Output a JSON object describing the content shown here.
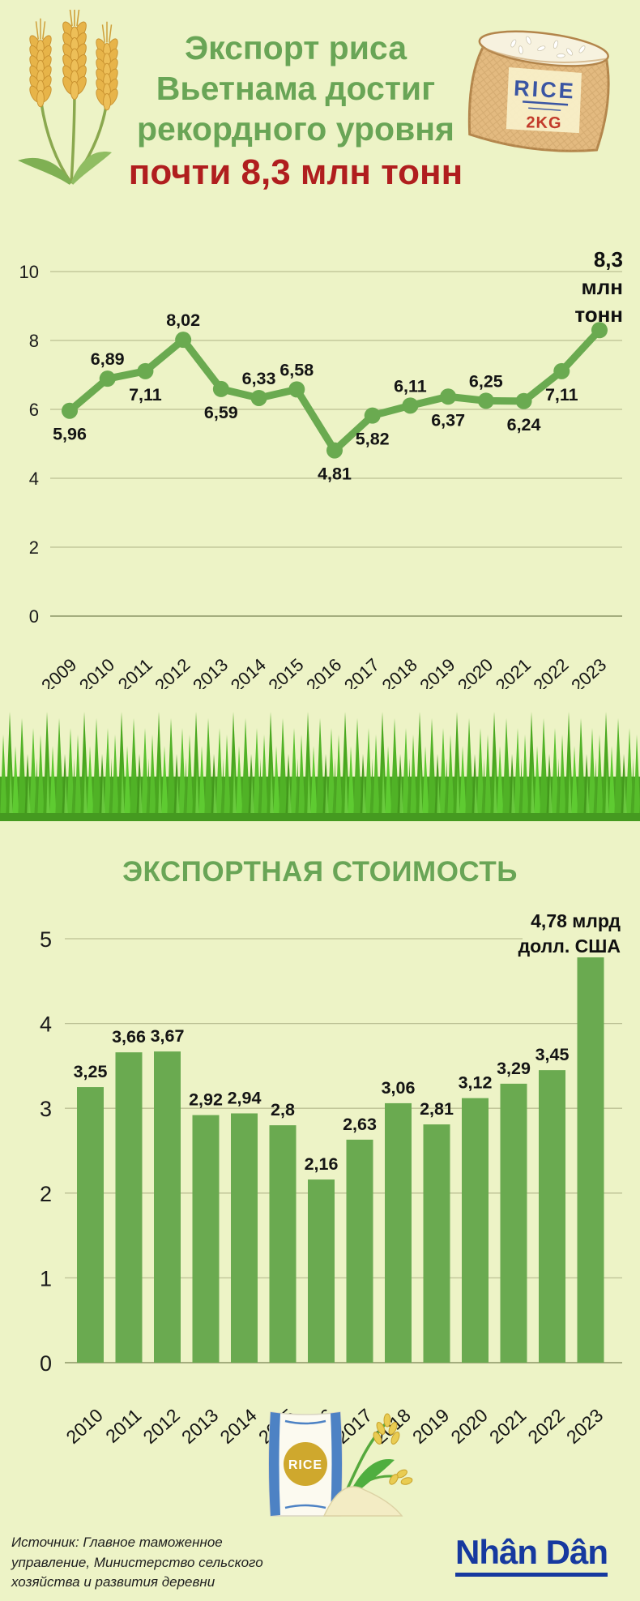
{
  "page": {
    "background": "#edf3c6",
    "accent_green": "#6aaa50",
    "title_green": "#69a556",
    "title_red": "#b01e1e",
    "logo_blue": "#16399f"
  },
  "header": {
    "title_lines": [
      "Экспорт риса",
      "Вьетнама достиг",
      "рекордного уровня"
    ],
    "subtitle": "почти 8,3 млн тонн",
    "sack_label": "RICE",
    "sack_weight": "2KG"
  },
  "chart_data": [
    {
      "type": "line",
      "x": [
        "2009",
        "2010",
        "2011",
        "2012",
        "2013",
        "2014",
        "2015",
        "2016",
        "2017",
        "2018",
        "2019",
        "2020",
        "2021",
        "2022",
        "2023"
      ],
      "values": [
        5.96,
        6.89,
        7.11,
        8.02,
        6.59,
        6.33,
        6.58,
        4.81,
        5.82,
        6.11,
        6.37,
        6.25,
        6.24,
        7.11,
        8.3
      ],
      "point_labels": [
        "5,96",
        "6,89",
        "7,11",
        "8,02",
        "6,59",
        "6,33",
        "6,58",
        "4,81",
        "5,82",
        "6,11",
        "6,37",
        "6,25",
        "6,24",
        "7,11",
        ""
      ],
      "label_side": [
        "below",
        "above",
        "below",
        "above",
        "below",
        "above",
        "above",
        "below",
        "below",
        "above",
        "below",
        "above",
        "below",
        "below",
        "none"
      ],
      "end_annotation": [
        "8,3",
        "млн",
        "тонн"
      ],
      "ylim": [
        0,
        10
      ],
      "yticks": [
        0,
        2,
        4,
        6,
        8,
        10
      ],
      "grid": true,
      "legend": "none",
      "line_color": "#6aaa50"
    },
    {
      "type": "bar",
      "title": "ЭКСПОРТНАЯ СТОИМОСТЬ",
      "categories": [
        "2010",
        "2011",
        "2012",
        "2013",
        "2014",
        "2015",
        "2016",
        "2017",
        "2018",
        "2019",
        "2020",
        "2021",
        "2022",
        "2023"
      ],
      "values": [
        3.25,
        3.66,
        3.67,
        2.92,
        2.94,
        2.8,
        2.16,
        2.63,
        3.06,
        2.81,
        3.12,
        3.29,
        3.45,
        4.78
      ],
      "bar_labels": [
        "3,25",
        "3,66",
        "3,67",
        "2,92",
        "2,94",
        "2,8",
        "2,16",
        "2,63",
        "3,06",
        "2,81",
        "3,12",
        "3,29",
        "3,45",
        ""
      ],
      "last_annotation": [
        "4,78 млрд",
        "долл. США"
      ],
      "ylim": [
        0,
        5
      ],
      "yticks": [
        0,
        1,
        2,
        3,
        4,
        5
      ],
      "grid": true,
      "legend": "none",
      "bar_color": "#6aaa50"
    }
  ],
  "footer": {
    "bag_label": "RICE",
    "source_lines": [
      "Источник: Главное таможенное",
      "управление, Министерство сельского",
      "хозяйства и развития деревни"
    ],
    "logo": "Nhân Dân"
  }
}
